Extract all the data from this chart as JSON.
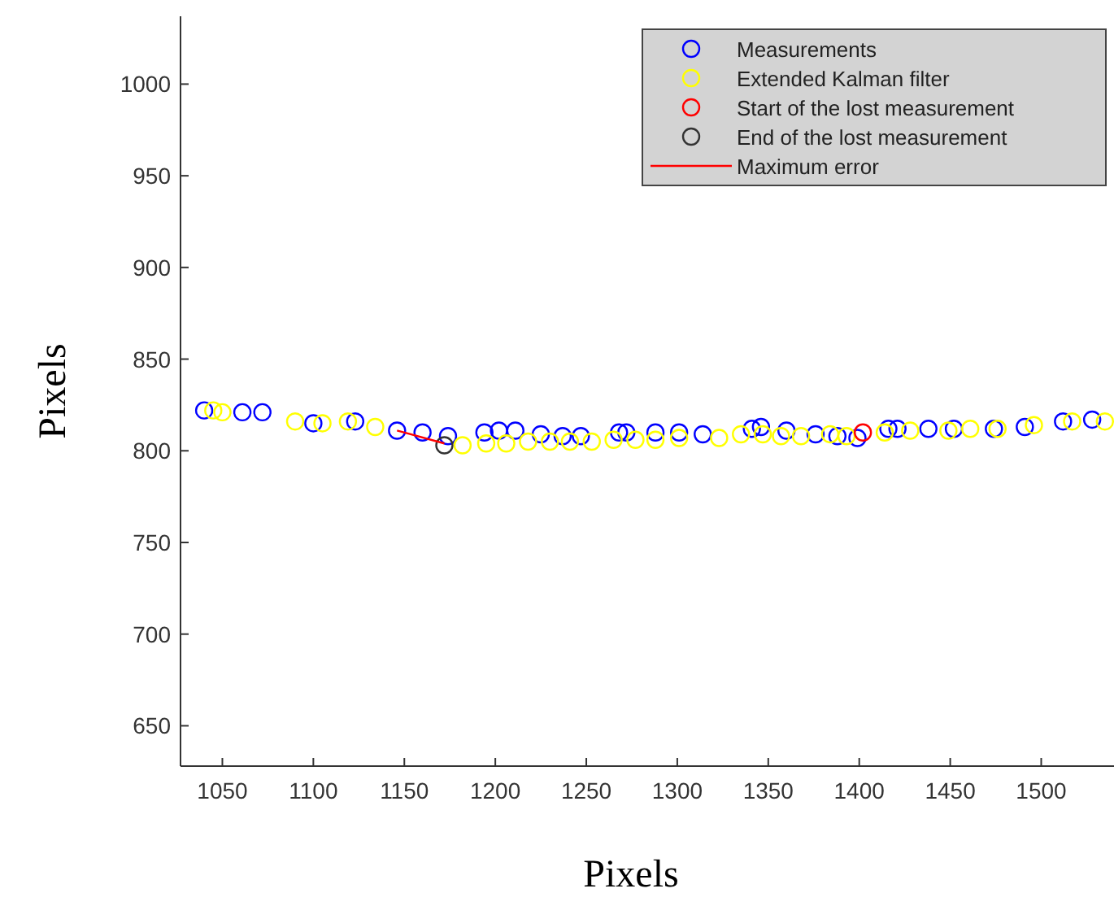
{
  "chart_data": {
    "type": "scatter",
    "xlabel": "Pixels",
    "ylabel": "Pixels",
    "xlim": [
      1027,
      1540
    ],
    "ylim": [
      628,
      1037
    ],
    "xticks": [
      1050,
      1100,
      1150,
      1200,
      1250,
      1300,
      1350,
      1400,
      1450,
      1500
    ],
    "yticks": [
      650,
      700,
      750,
      800,
      850,
      900,
      950,
      1000
    ],
    "marker": "circle",
    "legend": "top right",
    "grid": false,
    "series": [
      {
        "name": "Measurements",
        "color": "#0000ff",
        "x": [
          1040,
          1061,
          1072,
          1100,
          1123,
          1146,
          1160,
          1174,
          1194,
          1202,
          1211,
          1225,
          1237,
          1247,
          1268,
          1272,
          1288,
          1301,
          1314,
          1341,
          1346,
          1360,
          1376,
          1388,
          1399,
          1416,
          1421,
          1438,
          1452,
          1474,
          1491,
          1512,
          1528
        ],
        "values": [
          822,
          821,
          821,
          815,
          816,
          811,
          810,
          808,
          810,
          811,
          811,
          809,
          808,
          808,
          810,
          810,
          810,
          810,
          809,
          812,
          813,
          811,
          809,
          808,
          807,
          812,
          812,
          812,
          812,
          812,
          813,
          816,
          817
        ]
      },
      {
        "name": "Extended Kalman filter",
        "color": "#ffff00",
        "x": [
          1045,
          1050,
          1090,
          1105,
          1119,
          1134,
          1182,
          1195,
          1206,
          1218,
          1230,
          1241,
          1253,
          1265,
          1277,
          1288,
          1301,
          1323,
          1335,
          1347,
          1357,
          1368,
          1384,
          1393,
          1414,
          1428,
          1449,
          1461,
          1476,
          1496,
          1517,
          1535
        ],
        "values": [
          822,
          821,
          816,
          815,
          816,
          813,
          803,
          804,
          804,
          805,
          805,
          805,
          805,
          806,
          806,
          806,
          807,
          807,
          809,
          809,
          808,
          808,
          809,
          808,
          810,
          811,
          811,
          812,
          812,
          814,
          816,
          816
        ]
      },
      {
        "name": "Start of the lost measurement",
        "color": "#ff0000",
        "x": [
          1402
        ],
        "values": [
          810
        ]
      },
      {
        "name": "End of the lost measurement",
        "color": "#333333",
        "x": [
          1172
        ],
        "values": [
          803
        ]
      },
      {
        "name": "Maximum error",
        "type": "line",
        "marker": "none",
        "color": "#ff0000",
        "x": [
          1146,
          1172
        ],
        "values": [
          811,
          804
        ]
      }
    ]
  }
}
